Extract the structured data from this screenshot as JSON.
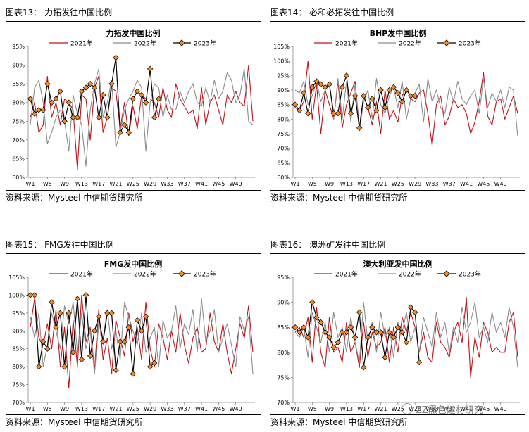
{
  "figures": [
    {
      "header": "图表13：  力拓发往中国比例",
      "source": "资料来源：Mysteel  中信期货研究所",
      "chart_data": {
        "type": "line",
        "title": "力拓发中国比例",
        "ylim": [
          60,
          95
        ],
        "yticks": [
          60,
          65,
          70,
          75,
          80,
          85,
          90,
          95
        ],
        "yfmt": "%",
        "xticks": [
          "W1",
          "W5",
          "W9",
          "W13",
          "W17",
          "W21",
          "W25",
          "W29",
          "W33",
          "W37",
          "W41",
          "W45",
          "W49"
        ],
        "legend_position": "top",
        "series": [
          {
            "name": "2021年",
            "color": "#c0131a",
            "marker": false,
            "values": [
              76,
              80,
              72,
              74,
              87,
              76,
              80,
              74,
              81,
              80,
              78,
              62,
              82,
              81,
              70,
              84,
              87,
              72,
              76,
              84,
              83,
              73,
              80,
              71,
              79,
              73,
              82,
              81,
              81,
              80,
              76,
              84,
              78,
              76,
              85,
              81,
              79,
              77,
              78,
              73,
              84,
              74,
              80,
              82,
              78,
              74,
              82,
              80,
              83,
              80,
              79,
              90,
              75
            ]
          },
          {
            "name": "2022年",
            "color": "#8c8c8c",
            "marker": false,
            "values": [
              74,
              84,
              86,
              80,
              69,
              72,
              76,
              78,
              75,
              67,
              82,
              77,
              74,
              63,
              78,
              85,
              89,
              76,
              80,
              86,
              68,
              72,
              78,
              81,
              83,
              86,
              84,
              67,
              80,
              85,
              84,
              76,
              82,
              78,
              78,
              83,
              80,
              83,
              85,
              80,
              79,
              84,
              80,
              86,
              81,
              83,
              88,
              86,
              80,
              82,
              89,
              75,
              74
            ]
          },
          {
            "name": "2023年",
            "color": "#000000",
            "marker": true,
            "values": [
              81,
              77,
              78,
              78,
              85,
              80,
              81,
              83,
              75,
              80,
              76,
              76,
              83,
              84,
              85,
              84,
              76,
              82,
              76,
              85,
              92,
              72,
              74,
              72,
              81,
              83,
              82,
              80,
              89,
              76,
              81
            ]
          }
        ]
      }
    },
    {
      "header": "图表14：  必和必拓发往中国比例",
      "source": "资料来源：Mysteel  中信期货研究所",
      "chart_data": {
        "type": "line",
        "title": "BHP发中国比例",
        "ylim": [
          60,
          105
        ],
        "yticks": [
          60,
          65,
          70,
          75,
          80,
          85,
          90,
          95,
          100,
          105
        ],
        "yfmt": "%",
        "xticks": [
          "W1",
          "W5",
          "W9",
          "W13",
          "W17",
          "W21",
          "W25",
          "W29",
          "W33",
          "W37",
          "W41",
          "W45",
          "W49"
        ],
        "legend_position": "top",
        "series": [
          {
            "name": "2021年",
            "color": "#c0131a",
            "marker": false,
            "values": [
              84,
              83,
              86,
              100,
              80,
              92,
              75,
              90,
              85,
              80,
              93,
              77,
              85,
              89,
              93,
              77,
              88,
              84,
              78,
              86,
              75,
              90,
              80,
              83,
              79,
              88,
              91,
              87,
              86,
              89,
              90,
              82,
              71,
              85,
              88,
              78,
              81,
              87,
              84,
              85,
              82,
              75,
              79,
              86,
              96,
              81,
              78,
              86,
              87,
              80,
              84,
              88,
              82
            ]
          },
          {
            "name": "2022年",
            "color": "#8c8c8c",
            "marker": false,
            "values": [
              90,
              89,
              93,
              85,
              88,
              93,
              86,
              90,
              92,
              80,
              94,
              80,
              93,
              79,
              92,
              76,
              86,
              90,
              80,
              94,
              85,
              82,
              88,
              91,
              84,
              93,
              80,
              87,
              89,
              92,
              79,
              94,
              86,
              90,
              84,
              82,
              91,
              86,
              93,
              87,
              85,
              88,
              90,
              82,
              94,
              84,
              89,
              86,
              90,
              84,
              91,
              90,
              74
            ]
          },
          {
            "name": "2023年",
            "color": "#000000",
            "marker": true,
            "values": [
              85,
              83,
              89,
              82,
              91,
              93,
              92,
              91,
              92,
              82,
              82,
              91,
              95,
              82,
              88,
              77,
              88,
              84,
              87,
              83,
              90,
              84,
              90,
              91,
              89,
              86,
              90,
              88,
              88
            ]
          }
        ]
      }
    },
    {
      "header": "图表15：  FMG发往中国比例",
      "source": "资料来源：Mysteel  中信期货研究所",
      "chart_data": {
        "type": "line",
        "title": "FMG发中国比例",
        "ylim": [
          70,
          105
        ],
        "yticks": [
          70,
          75,
          80,
          85,
          90,
          95,
          100,
          105
        ],
        "yfmt": "%",
        "xticks": [
          "W1",
          "W5",
          "W9",
          "W13",
          "W17",
          "W21",
          "W25",
          "W29",
          "W33",
          "W37",
          "W41",
          "W45",
          "W49"
        ],
        "legend_position": "top",
        "series": [
          {
            "name": "2021年",
            "color": "#c0131a",
            "marker": false,
            "values": [
              91,
              99,
              88,
              86,
              92,
              85,
              96,
              80,
              91,
              74,
              93,
              80,
              100,
              87,
              91,
              79,
              96,
              82,
              88,
              78,
              93,
              88,
              83,
              95,
              87,
              91,
              82,
              98,
              85,
              80,
              92,
              88,
              82,
              90,
              84,
              95,
              86,
              81,
              88,
              91,
              84,
              85,
              95,
              87,
              84,
              92,
              84,
              78,
              85,
              92,
              88,
              97,
              84
            ]
          },
          {
            "name": "2022年",
            "color": "#8c8c8c",
            "marker": false,
            "values": [
              94,
              88,
              95,
              80,
              86,
              95,
              90,
              85,
              97,
              92,
              98,
              84,
              95,
              85,
              90,
              78,
              92,
              88,
              96,
              85,
              90,
              82,
              98,
              94,
              90,
              86,
              95,
              84,
              88,
              91,
              80,
              93,
              88,
              90,
              97,
              85,
              92,
              89,
              96,
              84,
              99,
              87,
              90,
              96,
              84,
              88,
              92,
              86,
              80,
              94,
              90,
              94,
              78
            ]
          },
          {
            "name": "2023年",
            "color": "#000000",
            "marker": true,
            "values": [
              100,
              100,
              80,
              87,
              85,
              98,
              91,
              95,
              80,
              95,
              84,
              99,
              82,
              100,
              83,
              90,
              94,
              87,
              95,
              95,
              79,
              87,
              87,
              91,
              78,
              93,
              90,
              94,
              80,
              81
            ]
          }
        ]
      }
    },
    {
      "header": "图表16：  澳洲矿发往中国比例",
      "source": "资料来源：Mysteel  中信期货研究所",
      "chart_data": {
        "type": "line",
        "title": "澳大利亚发中国比例",
        "ylim": [
          70,
          95
        ],
        "yticks": [
          70,
          75,
          80,
          85,
          90,
          95
        ],
        "yfmt": "%",
        "xticks": [
          "W1",
          "W5",
          "W9",
          "W13",
          "W17",
          "W21",
          "W25",
          "W29",
          "W33",
          "W37",
          "W41",
          "W45",
          "W49"
        ],
        "legend_position": "top",
        "series": [
          {
            "name": "2021年",
            "color": "#c0131a",
            "marker": false,
            "values": [
              84,
              85,
              83,
              87,
              78,
              89,
              80,
              77,
              87,
              80,
              81,
              78,
              86,
              80,
              82,
              77,
              86,
              79,
              84,
              81,
              82,
              85,
              78,
              85,
              80,
              87,
              84,
              88,
              85,
              80,
              84,
              79,
              78,
              86,
              82,
              81,
              79,
              84,
              86,
              82,
              91,
              75,
              83,
              79,
              86,
              84,
              80,
              81,
              80,
              80,
              86,
              88,
              79
            ]
          },
          {
            "name": "2022年",
            "color": "#8c8c8c",
            "marker": false,
            "values": [
              84,
              83,
              85,
              79,
              88,
              85,
              82,
              86,
              80,
              88,
              83,
              85,
              80,
              87,
              82,
              78,
              90,
              82,
              86,
              80,
              88,
              83,
              85,
              79,
              86,
              84,
              88,
              82,
              85,
              80,
              87,
              84,
              81,
              88,
              83,
              86,
              80,
              85,
              82,
              89,
              84,
              86,
              90,
              83,
              85,
              82,
              88,
              84,
              86,
              83,
              89,
              85,
              77
            ]
          },
          {
            "name": "2023年",
            "color": "#000000",
            "marker": true,
            "values": [
              85,
              84,
              85,
              83,
              90,
              87,
              86,
              84,
              83,
              81,
              82,
              84,
              84,
              85,
              83,
              88,
              77,
              83,
              85,
              84,
              84,
              79,
              84,
              83,
              85,
              84,
              82,
              89,
              88,
              78
            ]
          }
        ]
      }
    }
  ],
  "watermark": "ZZ黑色建材研究"
}
